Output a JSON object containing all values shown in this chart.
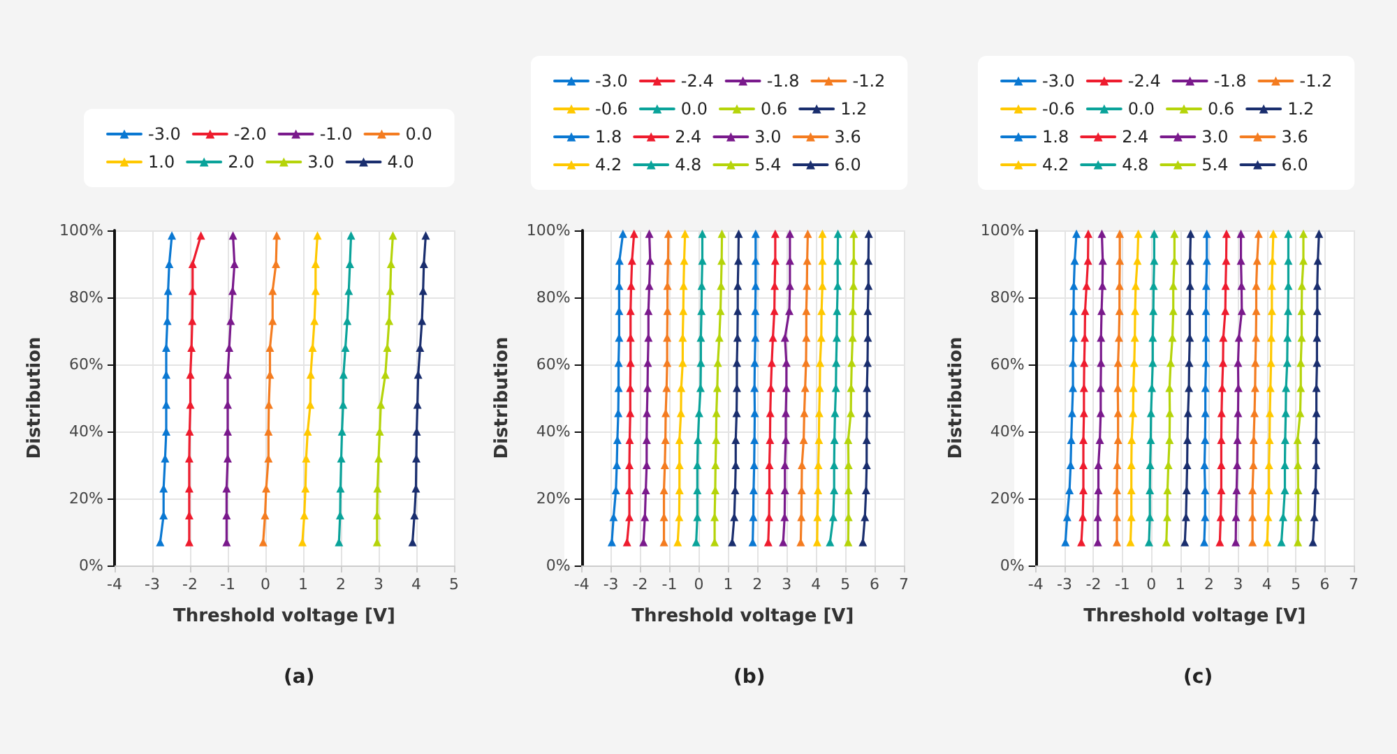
{
  "chart_data": [
    {
      "type": "line",
      "xlabel": "Threshold voltage [V]",
      "ylabel": "Distribution",
      "annotations": [
        "(a)"
      ],
      "xlim": [
        -4,
        5
      ],
      "xticks": [
        -4,
        -3,
        -2,
        -1,
        0,
        1,
        2,
        3,
        4,
        5
      ],
      "ylim": [
        0,
        100
      ],
      "yticks": [
        {
          "value": 0,
          "label": "0%"
        },
        {
          "value": 20,
          "label": "20%"
        },
        {
          "value": 40,
          "label": "40%"
        },
        {
          "value": 60,
          "label": "60%"
        },
        {
          "value": 80,
          "label": "80%"
        },
        {
          "value": 100,
          "label": "100%"
        }
      ],
      "grid": true,
      "legend": "top",
      "marker": "triangle",
      "series": [
        {
          "name": "-3.0",
          "color": "#0a78d2",
          "x": [
            -2.79,
            -2.7,
            -2.7,
            -2.66,
            -2.63,
            -2.63,
            -2.63,
            -2.63,
            -2.6,
            -2.58,
            -2.55,
            -2.48
          ],
          "values": [
            7,
            15,
            23,
            32,
            40,
            48,
            57,
            65,
            73,
            82,
            90,
            98.5
          ]
        },
        {
          "name": "-2.0",
          "color": "#ee1c2e",
          "x": [
            -2.02,
            -2.02,
            -2.02,
            -2.02,
            -2.01,
            -1.99,
            -1.99,
            -1.96,
            -1.94,
            -1.93,
            -1.93,
            -1.71
          ],
          "values": [
            7,
            15,
            23,
            32,
            40,
            48,
            57,
            65,
            73,
            82,
            90,
            98.5
          ]
        },
        {
          "name": "-1.0",
          "color": "#7a1a8c",
          "x": [
            -1.03,
            -1.03,
            -1.03,
            -1.0,
            -1.0,
            -1.0,
            -1.0,
            -0.96,
            -0.92,
            -0.87,
            -0.82,
            -0.86
          ],
          "values": [
            7,
            15,
            23,
            32,
            40,
            48,
            57,
            65,
            73,
            82,
            90,
            98.5
          ]
        },
        {
          "name": "0.0",
          "color": "#f47c20",
          "x": [
            -0.06,
            -0.01,
            0.02,
            0.08,
            0.08,
            0.09,
            0.12,
            0.12,
            0.19,
            0.19,
            0.28,
            0.3
          ],
          "values": [
            7,
            15,
            23,
            32,
            40,
            48,
            57,
            65,
            73,
            82,
            90,
            98.5
          ]
        },
        {
          "name": "1.0",
          "color": "#ffc800",
          "x": [
            0.98,
            1.03,
            1.06,
            1.08,
            1.12,
            1.19,
            1.2,
            1.25,
            1.3,
            1.33,
            1.33,
            1.38
          ],
          "values": [
            7,
            15,
            23,
            32,
            40,
            48,
            57,
            65,
            73,
            82,
            90,
            98.5
          ]
        },
        {
          "name": "2.0",
          "color": "#0aa39a",
          "x": [
            1.95,
            1.98,
            1.99,
            2.01,
            2.03,
            2.06,
            2.07,
            2.12,
            2.17,
            2.21,
            2.24,
            2.27
          ],
          "values": [
            7,
            15,
            23,
            32,
            40,
            48,
            57,
            65,
            73,
            82,
            90,
            98.5
          ]
        },
        {
          "name": "3.0",
          "color": "#b5d40a",
          "x": [
            2.96,
            2.96,
            2.97,
            3.0,
            3.03,
            3.06,
            3.18,
            3.23,
            3.28,
            3.31,
            3.33,
            3.38
          ],
          "values": [
            7,
            15,
            23,
            32,
            40,
            48,
            57,
            65,
            73,
            82,
            90,
            98.5
          ]
        },
        {
          "name": "4.0",
          "color": "#1a2e6e",
          "x": [
            3.9,
            3.95,
            3.99,
            4.0,
            4.01,
            4.03,
            4.05,
            4.1,
            4.15,
            4.18,
            4.2,
            4.25
          ],
          "values": [
            7,
            15,
            23,
            32,
            40,
            48,
            57,
            65,
            73,
            82,
            90,
            98.5
          ]
        }
      ]
    },
    {
      "type": "line",
      "xlabel": "Threshold voltage [V]",
      "ylabel": "Distribution",
      "annotations": [
        "(b)"
      ],
      "xlim": [
        -4,
        7
      ],
      "xticks": [
        -4,
        -3,
        -2,
        -1,
        0,
        1,
        2,
        3,
        4,
        5,
        6,
        7
      ],
      "ylim": [
        0,
        100
      ],
      "yticks": [
        {
          "value": 0,
          "label": "0%"
        },
        {
          "value": 20,
          "label": "20%"
        },
        {
          "value": 40,
          "label": "40%"
        },
        {
          "value": 60,
          "label": "60%"
        },
        {
          "value": 80,
          "label": "80%"
        },
        {
          "value": 100,
          "label": "100%"
        }
      ],
      "grid": true,
      "legend": "top",
      "marker": "triangle",
      "series": [
        {
          "name": "-3.0",
          "color": "#0a78d2",
          "x": [
            -2.97,
            -2.91,
            -2.83,
            -2.8,
            -2.78,
            -2.75,
            -2.74,
            -2.74,
            -2.72,
            -2.72,
            -2.72,
            -2.71,
            -2.59
          ],
          "values": [
            7,
            14.5,
            22.5,
            30,
            37.5,
            45.5,
            53,
            60.5,
            68,
            76,
            83.5,
            91,
            99
          ]
        },
        {
          "name": "-2.4",
          "color": "#ee1c2e",
          "x": [
            -2.45,
            -2.37,
            -2.37,
            -2.37,
            -2.36,
            -2.34,
            -2.34,
            -2.33,
            -2.33,
            -2.33,
            -2.31,
            -2.28,
            -2.21
          ],
          "values": [
            7,
            14.5,
            22.5,
            30,
            37.5,
            45.5,
            53,
            60.5,
            68,
            76,
            83.5,
            91,
            99
          ]
        },
        {
          "name": "-1.8",
          "color": "#7a1a8c",
          "x": [
            -1.89,
            -1.84,
            -1.81,
            -1.78,
            -1.78,
            -1.77,
            -1.75,
            -1.74,
            -1.72,
            -1.72,
            -1.69,
            -1.66,
            -1.69
          ],
          "values": [
            7,
            14.5,
            22.5,
            30,
            37.5,
            45.5,
            53,
            60.5,
            68,
            76,
            83.5,
            91,
            99
          ]
        },
        {
          "name": "-1.2",
          "color": "#f47c20",
          "x": [
            -1.19,
            -1.19,
            -1.19,
            -1.16,
            -1.14,
            -1.13,
            -1.1,
            -1.08,
            -1.08,
            -1.07,
            -1.07,
            -1.05,
            -1.04
          ],
          "values": [
            7,
            14.5,
            22.5,
            30,
            37.5,
            45.5,
            53,
            60.5,
            68,
            76,
            83.5,
            91,
            99
          ]
        },
        {
          "name": "-0.6",
          "color": "#ffc800",
          "x": [
            -0.72,
            -0.67,
            -0.66,
            -0.66,
            -0.66,
            -0.61,
            -0.6,
            -0.55,
            -0.55,
            -0.53,
            -0.52,
            -0.5,
            -0.47
          ],
          "values": [
            7,
            14.5,
            22.5,
            30,
            37.5,
            45.5,
            53,
            60.5,
            68,
            76,
            83.5,
            91,
            99
          ]
        },
        {
          "name": "0.0",
          "color": "#0aa39a",
          "x": [
            -0.09,
            -0.05,
            -0.05,
            -0.05,
            -0.03,
            0.01,
            0.06,
            0.07,
            0.07,
            0.09,
            0.1,
            0.12,
            0.12
          ],
          "values": [
            7,
            14.5,
            22.5,
            30,
            37.5,
            45.5,
            53,
            60.5,
            68,
            76,
            83.5,
            91,
            99
          ]
        },
        {
          "name": "0.6",
          "color": "#b5d40a",
          "x": [
            0.54,
            0.54,
            0.56,
            0.57,
            0.59,
            0.6,
            0.63,
            0.65,
            0.7,
            0.74,
            0.76,
            0.78,
            0.79
          ],
          "values": [
            7,
            14.5,
            22.5,
            30,
            37.5,
            45.5,
            53,
            60.5,
            68,
            76,
            83.5,
            91,
            99
          ]
        },
        {
          "name": "1.2",
          "color": "#1a2e6e",
          "x": [
            1.14,
            1.21,
            1.24,
            1.26,
            1.26,
            1.29,
            1.3,
            1.3,
            1.32,
            1.33,
            1.33,
            1.35,
            1.36
          ],
          "values": [
            7,
            14.5,
            22.5,
            30,
            37.5,
            45.5,
            53,
            60.5,
            68,
            76,
            83.5,
            91,
            99
          ]
        },
        {
          "name": "1.8",
          "color": "#0a78d2",
          "x": [
            1.84,
            1.86,
            1.87,
            1.89,
            1.9,
            1.91,
            1.9,
            1.91,
            1.93,
            1.93,
            1.94,
            1.94,
            1.94
          ],
          "values": [
            7,
            14.5,
            22.5,
            30,
            37.5,
            45.5,
            53,
            60.5,
            68,
            76,
            83.5,
            91,
            99
          ]
        },
        {
          "name": "2.4",
          "color": "#ee1c2e",
          "x": [
            2.37,
            2.4,
            2.41,
            2.41,
            2.43,
            2.44,
            2.46,
            2.49,
            2.53,
            2.58,
            2.59,
            2.61,
            2.61
          ],
          "values": [
            7,
            14.5,
            22.5,
            30,
            37.5,
            45.5,
            53,
            60.5,
            68,
            76,
            83.5,
            91,
            99
          ]
        },
        {
          "name": "3.0",
          "color": "#7a1a8c",
          "x": [
            2.88,
            2.93,
            2.94,
            2.94,
            2.97,
            2.97,
            2.99,
            2.99,
            2.94,
            3.09,
            3.11,
            3.11,
            3.11
          ],
          "values": [
            7,
            14.5,
            22.5,
            30,
            37.5,
            45.5,
            53,
            60.5,
            68,
            76,
            83.5,
            91,
            99
          ]
        },
        {
          "name": "3.6",
          "color": "#f47c20",
          "x": [
            3.48,
            3.5,
            3.51,
            3.52,
            3.58,
            3.6,
            3.63,
            3.66,
            3.67,
            3.67,
            3.69,
            3.7,
            3.72
          ],
          "values": [
            7,
            14.5,
            22.5,
            30,
            37.5,
            45.5,
            53,
            60.5,
            68,
            76,
            83.5,
            91,
            99
          ]
        },
        {
          "name": "4.2",
          "color": "#ffc800",
          "x": [
            4.04,
            4.05,
            4.07,
            4.08,
            4.1,
            4.11,
            4.13,
            4.14,
            4.18,
            4.19,
            4.22,
            4.22,
            4.22
          ],
          "values": [
            7,
            14.5,
            22.5,
            30,
            37.5,
            45.5,
            53,
            60.5,
            68,
            76,
            83.5,
            91,
            99
          ]
        },
        {
          "name": "4.8",
          "color": "#0aa39a",
          "x": [
            4.48,
            4.59,
            4.62,
            4.62,
            4.63,
            4.65,
            4.68,
            4.69,
            4.71,
            4.72,
            4.74,
            4.74,
            4.75
          ],
          "values": [
            7,
            14.5,
            22.5,
            30,
            37.5,
            45.5,
            53,
            60.5,
            68,
            76,
            83.5,
            91,
            99
          ]
        },
        {
          "name": "5.4",
          "color": "#b5d40a",
          "x": [
            5.1,
            5.11,
            5.11,
            5.11,
            5.1,
            5.19,
            5.2,
            5.22,
            5.25,
            5.26,
            5.28,
            5.29,
            5.29
          ],
          "values": [
            7,
            14.5,
            22.5,
            30,
            37.5,
            45.5,
            53,
            60.5,
            68,
            76,
            83.5,
            91,
            99
          ]
        },
        {
          "name": "6.0",
          "color": "#1a2e6e",
          "x": [
            5.6,
            5.67,
            5.71,
            5.73,
            5.73,
            5.74,
            5.74,
            5.76,
            5.77,
            5.77,
            5.79,
            5.79,
            5.8
          ],
          "values": [
            7,
            14.5,
            22.5,
            30,
            37.5,
            45.5,
            53,
            60.5,
            68,
            76,
            83.5,
            91,
            99
          ]
        }
      ]
    },
    {
      "type": "line",
      "xlabel": "Threshold voltage [V]",
      "ylabel": "Distribution",
      "annotations": [
        "(c)"
      ],
      "xlim": [
        -4,
        7
      ],
      "xticks": [
        -4,
        -3,
        -2,
        -1,
        0,
        1,
        2,
        3,
        4,
        5,
        6,
        7
      ],
      "ylim": [
        0,
        100
      ],
      "yticks": [
        {
          "value": 0,
          "label": "0%"
        },
        {
          "value": 20,
          "label": "20%"
        },
        {
          "value": 40,
          "label": "40%"
        },
        {
          "value": 60,
          "label": "60%"
        },
        {
          "value": 80,
          "label": "80%"
        },
        {
          "value": 100,
          "label": "100%"
        }
      ],
      "grid": true,
      "legend": "top",
      "marker": "triangle",
      "series": [
        {
          "name": "-3.0",
          "color": "#0a78d2",
          "x": [
            -2.97,
            -2.91,
            -2.83,
            -2.79,
            -2.77,
            -2.74,
            -2.71,
            -2.71,
            -2.69,
            -2.69,
            -2.68,
            -2.65,
            -2.59
          ],
          "values": [
            7,
            14.5,
            22.5,
            30,
            37.5,
            45.5,
            53,
            60.5,
            68,
            76,
            83.5,
            91,
            99
          ]
        },
        {
          "name": "-2.4",
          "color": "#ee1c2e",
          "x": [
            -2.42,
            -2.37,
            -2.35,
            -2.35,
            -2.35,
            -2.33,
            -2.33,
            -2.32,
            -2.3,
            -2.29,
            -2.24,
            -2.19,
            -2.18
          ],
          "values": [
            7,
            14.5,
            22.5,
            30,
            37.5,
            45.5,
            53,
            60.5,
            68,
            76,
            83.5,
            91,
            99
          ]
        },
        {
          "name": "-1.8",
          "color": "#7a1a8c",
          "x": [
            -1.85,
            -1.85,
            -1.83,
            -1.83,
            -1.78,
            -1.75,
            -1.75,
            -1.74,
            -1.74,
            -1.72,
            -1.69,
            -1.68,
            -1.71
          ],
          "values": [
            7,
            14.5,
            22.5,
            30,
            37.5,
            45.5,
            53,
            60.5,
            68,
            76,
            83.5,
            91,
            99
          ]
        },
        {
          "name": "-1.2",
          "color": "#f47c20",
          "x": [
            -1.19,
            -1.19,
            -1.19,
            -1.18,
            -1.15,
            -1.15,
            -1.16,
            -1.15,
            -1.12,
            -1.1,
            -1.1,
            -1.09,
            -1.09
          ],
          "values": [
            7,
            14.5,
            22.5,
            30,
            37.5,
            45.5,
            53,
            60.5,
            68,
            76,
            83.5,
            91,
            99
          ]
        },
        {
          "name": "-0.6",
          "color": "#ffc800",
          "x": [
            -0.72,
            -0.69,
            -0.69,
            -0.69,
            -0.68,
            -0.63,
            -0.62,
            -0.59,
            -0.57,
            -0.56,
            -0.54,
            -0.48,
            -0.45
          ],
          "values": [
            7,
            14.5,
            22.5,
            30,
            37.5,
            45.5,
            53,
            60.5,
            68,
            76,
            83.5,
            91,
            99
          ]
        },
        {
          "name": "0.0",
          "color": "#0aa39a",
          "x": [
            -0.08,
            -0.05,
            -0.05,
            -0.04,
            -0.02,
            -0.01,
            0.02,
            0.05,
            0.05,
            0.07,
            0.08,
            0.1,
            0.1
          ],
          "values": [
            7,
            14.5,
            22.5,
            30,
            37.5,
            45.5,
            53,
            60.5,
            68,
            76,
            83.5,
            91,
            99
          ]
        },
        {
          "name": "0.6",
          "color": "#b5d40a",
          "x": [
            0.52,
            0.55,
            0.56,
            0.59,
            0.63,
            0.64,
            0.63,
            0.67,
            0.73,
            0.76,
            0.76,
            0.8,
            0.8
          ],
          "values": [
            7,
            14.5,
            22.5,
            30,
            37.5,
            45.5,
            53,
            60.5,
            68,
            76,
            83.5,
            91,
            99
          ]
        },
        {
          "name": "1.2",
          "color": "#1a2e6e",
          "x": [
            1.16,
            1.2,
            1.22,
            1.24,
            1.25,
            1.27,
            1.3,
            1.31,
            1.33,
            1.33,
            1.34,
            1.34,
            1.36
          ],
          "values": [
            7,
            14.5,
            22.5,
            30,
            37.5,
            45.5,
            53,
            60.5,
            68,
            76,
            83.5,
            91,
            99
          ]
        },
        {
          "name": "1.8",
          "color": "#0a78d2",
          "x": [
            1.83,
            1.86,
            1.86,
            1.84,
            1.86,
            1.87,
            1.87,
            1.89,
            1.89,
            1.89,
            1.9,
            1.92,
            1.92
          ],
          "values": [
            7,
            14.5,
            22.5,
            30,
            37.5,
            45.5,
            53,
            60.5,
            68,
            76,
            83.5,
            91,
            99
          ]
        },
        {
          "name": "2.4",
          "color": "#ee1c2e",
          "x": [
            2.37,
            2.4,
            2.42,
            2.42,
            2.42,
            2.43,
            2.45,
            2.48,
            2.49,
            2.56,
            2.57,
            2.59,
            2.6
          ],
          "values": [
            7,
            14.5,
            22.5,
            30,
            37.5,
            45.5,
            53,
            60.5,
            68,
            76,
            83.5,
            91,
            99
          ]
        },
        {
          "name": "3.0",
          "color": "#7a1a8c",
          "x": [
            2.92,
            2.93,
            2.95,
            2.97,
            2.98,
            3.0,
            3.01,
            3.0,
            3.03,
            3.13,
            3.12,
            3.1,
            3.1
          ],
          "values": [
            7,
            14.5,
            22.5,
            30,
            37.5,
            45.5,
            53,
            60.5,
            68,
            76,
            83.5,
            91,
            99
          ]
        },
        {
          "name": "3.6",
          "color": "#f47c20",
          "x": [
            3.5,
            3.5,
            3.5,
            3.53,
            3.54,
            3.57,
            3.59,
            3.6,
            3.62,
            3.63,
            3.63,
            3.66,
            3.71
          ],
          "values": [
            7,
            14.5,
            22.5,
            30,
            37.5,
            45.5,
            53,
            60.5,
            68,
            76,
            83.5,
            91,
            99
          ]
        },
        {
          "name": "4.2",
          "color": "#ffc800",
          "x": [
            4.01,
            4.04,
            4.07,
            4.07,
            4.09,
            4.1,
            4.12,
            4.14,
            4.15,
            4.17,
            4.17,
            4.19,
            4.22
          ],
          "values": [
            7,
            14.5,
            22.5,
            30,
            37.5,
            45.5,
            53,
            60.5,
            68,
            76,
            83.5,
            91,
            99
          ]
        },
        {
          "name": "4.8",
          "color": "#0aa39a",
          "x": [
            4.5,
            4.56,
            4.62,
            4.62,
            4.63,
            4.65,
            4.66,
            4.7,
            4.71,
            4.73,
            4.74,
            4.74,
            4.74
          ],
          "values": [
            7,
            14.5,
            22.5,
            30,
            37.5,
            45.5,
            53,
            60.5,
            68,
            76,
            83.5,
            91,
            99
          ]
        },
        {
          "name": "5.4",
          "color": "#b5d40a",
          "x": [
            5.07,
            5.08,
            5.08,
            5.07,
            5.06,
            5.15,
            5.17,
            5.17,
            5.2,
            5.2,
            5.21,
            5.26,
            5.26
          ],
          "values": [
            7,
            14.5,
            22.5,
            30,
            37.5,
            45.5,
            53,
            60.5,
            68,
            76,
            83.5,
            91,
            99
          ]
        },
        {
          "name": "6.0",
          "color": "#1a2e6e",
          "x": [
            5.59,
            5.64,
            5.68,
            5.7,
            5.7,
            5.71,
            5.71,
            5.73,
            5.73,
            5.74,
            5.74,
            5.76,
            5.8
          ],
          "values": [
            7,
            14.5,
            22.5,
            30,
            37.5,
            45.5,
            53,
            60.5,
            68,
            76,
            83.5,
            91,
            99
          ]
        }
      ]
    }
  ]
}
